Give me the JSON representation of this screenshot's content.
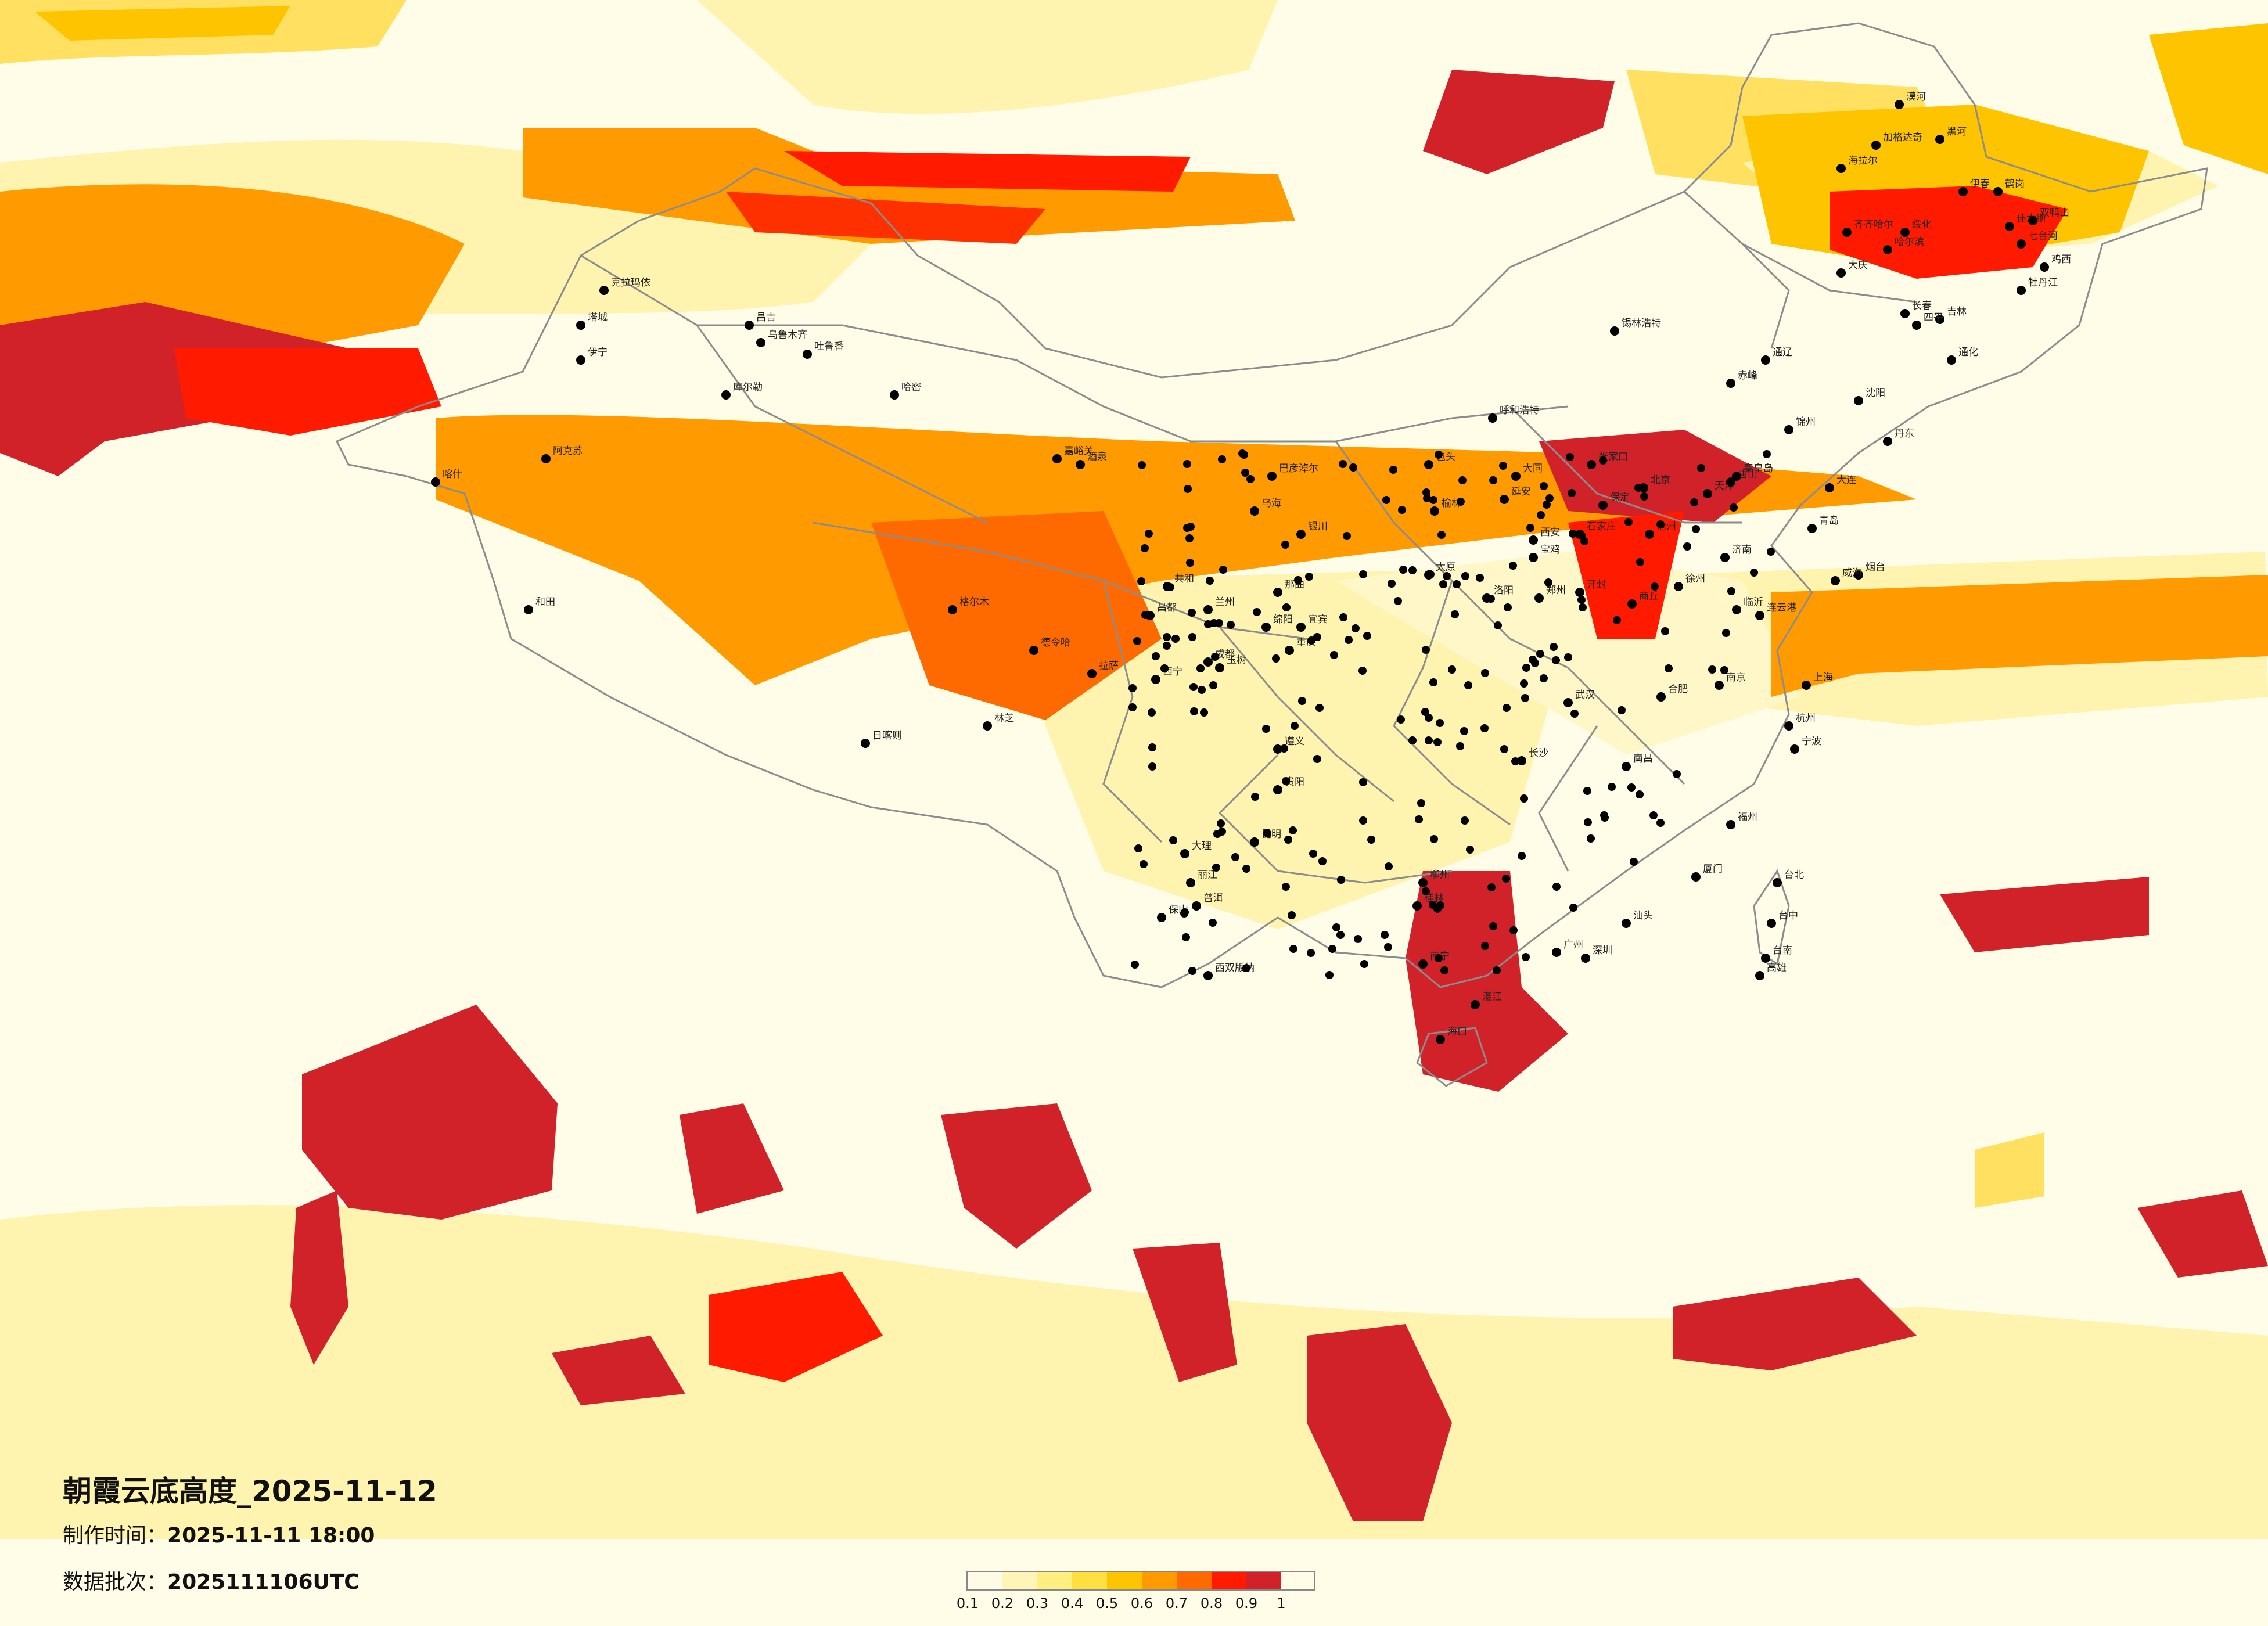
{
  "title": "朝霞云底高度_2025-11-12",
  "production_label": "制作时间：",
  "production_time": "2025-11-11 18:00",
  "batch_label": "数据批次：",
  "batch_value": "2025111106UTC",
  "colors": {
    "background": "#fffde8",
    "boundary": "#8c8c8c",
    "city_dot": "#000000"
  },
  "legend": {
    "colors": [
      "#fffbe6",
      "#fff5b8",
      "#ffee80",
      "#ffe040",
      "#ffc400",
      "#ff9a00",
      "#ff6a00",
      "#ff1a00",
      "#d1222a"
    ],
    "ticks": [
      "0.1",
      "0.2",
      "0.3",
      "0.4",
      "0.5",
      "0.6",
      "0.7",
      "0.8",
      "0.9",
      "1"
    ]
  },
  "cities": [
    "漠河",
    "加格达奇",
    "海拉尔",
    "黑河",
    "伊春",
    "齐齐哈尔",
    "大庆",
    "绥化",
    "哈尔滨",
    "鹤岗",
    "佳木斯",
    "双鸭山",
    "七台河",
    "鸡西",
    "牡丹江",
    "克拉玛依",
    "塔城",
    "伊宁",
    "昌吉",
    "乌鲁木齐",
    "吐鲁番",
    "库尔勒",
    "阿克苏",
    "哈密",
    "喀什",
    "和田",
    "嘉峪关",
    "酒泉",
    "格尔木",
    "德令哈",
    "西宁",
    "兰州",
    "银川",
    "共和",
    "乌海",
    "巴彦淖尔",
    "包头",
    "呼和浩特",
    "锡林浩特",
    "张家口",
    "北京",
    "天津",
    "唐山",
    "秦皇岛",
    "大同",
    "太原",
    "石家庄",
    "保定",
    "沧州",
    "济南",
    "青岛",
    "烟台",
    "威海",
    "临沂",
    "郑州",
    "洛阳",
    "开封",
    "商丘",
    "徐州",
    "连云港",
    "南京",
    "上海",
    "杭州",
    "宁波",
    "合肥",
    "武汉",
    "长沙",
    "南昌",
    "福州",
    "厦门",
    "台北",
    "台中",
    "台南",
    "高雄",
    "广州",
    "深圳",
    "汕头",
    "南宁",
    "海口",
    "湛江",
    "桂林",
    "柳州",
    "贵阳",
    "遵义",
    "昆明",
    "大理",
    "丽江",
    "保山",
    "普洱",
    "西双版纳",
    "成都",
    "重庆",
    "绵阳",
    "宜宾",
    "西安",
    "宝鸡",
    "延安",
    "榆林",
    "拉萨",
    "日喀则",
    "林芝",
    "昌都",
    "那曲",
    "玉树",
    "长春",
    "吉林",
    "通化",
    "四平",
    "沈阳",
    "大连",
    "丹东",
    "锦州",
    "赤峰",
    "通辽"
  ]
}
